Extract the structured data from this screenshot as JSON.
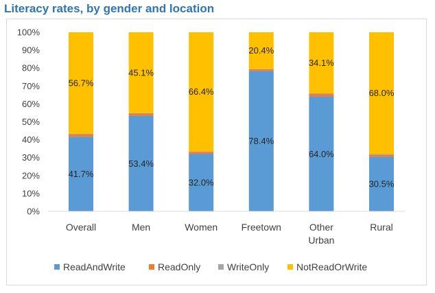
{
  "chart_data": {
    "type": "bar",
    "stacked": true,
    "title": "Literacy rates, by gender and location",
    "categories": [
      [
        "Overall"
      ],
      [
        "Men"
      ],
      [
        "Women"
      ],
      [
        "Freetown"
      ],
      [
        "Other",
        "Urban"
      ],
      [
        "Rural"
      ]
    ],
    "series": [
      {
        "name": "ReadAndWrite",
        "color": "#5B9BD5",
        "values": [
          41.7,
          53.4,
          32.0,
          78.4,
          64.0,
          30.5
        ],
        "labels": [
          "41.7%",
          "53.4%",
          "32.0%",
          "78.4%",
          "64.0%",
          "30.5%"
        ]
      },
      {
        "name": "ReadOnly",
        "color": "#ED7D31",
        "values": [
          1.2,
          1.2,
          1.2,
          1.0,
          1.5,
          1.2
        ]
      },
      {
        "name": "WriteOnly",
        "color": "#A5A5A5",
        "values": [
          0.4,
          0.3,
          0.4,
          0.2,
          0.4,
          0.3
        ]
      },
      {
        "name": "NotReadOrWrite",
        "color": "#FFC000",
        "values": [
          56.7,
          45.1,
          66.4,
          20.4,
          34.1,
          68.0
        ],
        "labels": [
          "56.7%",
          "45.1%",
          "66.4%",
          "20.4%",
          "34.1%",
          "68.0%"
        ]
      }
    ],
    "y_ticks": [
      "0%",
      "10%",
      "20%",
      "30%",
      "40%",
      "50%",
      "60%",
      "70%",
      "80%",
      "90%",
      "100%"
    ],
    "ylim": [
      0,
      100
    ],
    "grid": false,
    "legend": "bottom"
  }
}
